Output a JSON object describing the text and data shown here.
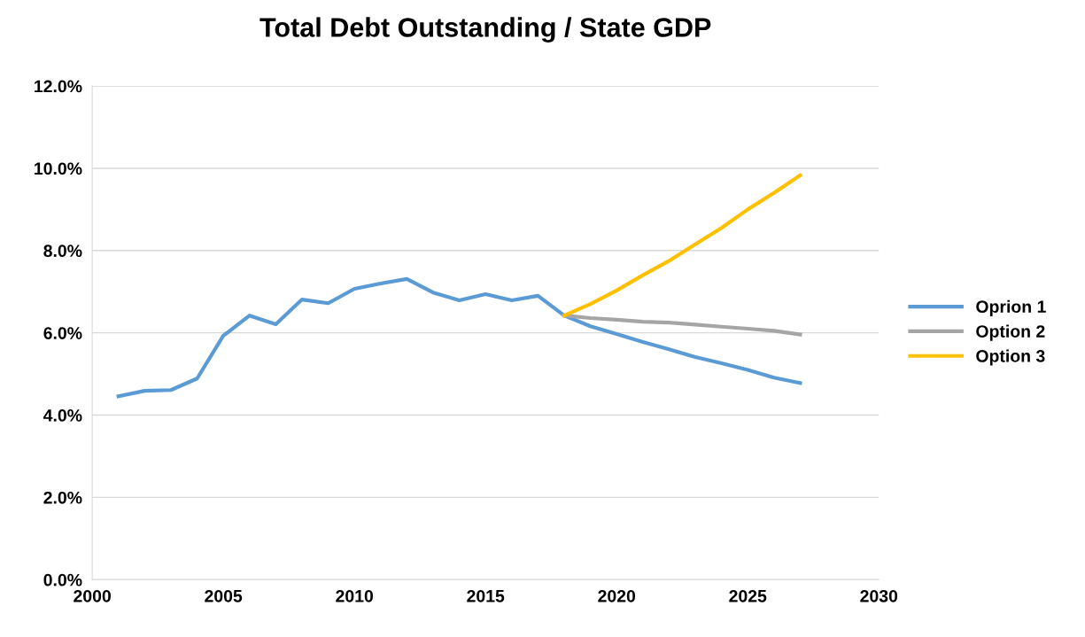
{
  "chart_data": {
    "type": "line",
    "title": "Total Debt Outstanding / State GDP",
    "xlim": [
      2000,
      2030
    ],
    "xticks": [
      2000,
      2005,
      2010,
      2015,
      2020,
      2025,
      2030
    ],
    "ylim": [
      0,
      12
    ],
    "yticks": [
      {
        "value": 0,
        "label": "0.0%"
      },
      {
        "value": 2,
        "label": "2.0%"
      },
      {
        "value": 4,
        "label": "4.0%"
      },
      {
        "value": 6,
        "label": "6.0%"
      },
      {
        "value": 8,
        "label": "8.0%"
      },
      {
        "value": 10,
        "label": "10.0%"
      },
      {
        "value": 12,
        "label": "12.0%"
      }
    ],
    "grid": "y",
    "legend": "right",
    "marker": "none",
    "line_style": "solid",
    "series": [
      {
        "name": "Oprion 1",
        "color": "#5b9bd5",
        "x": [
          2001,
          2002,
          2003,
          2004,
          2005,
          2006,
          2007,
          2008,
          2009,
          2010,
          2011,
          2012,
          2013,
          2014,
          2015,
          2016,
          2017,
          2018,
          2019,
          2020,
          2021,
          2022,
          2023,
          2024,
          2025,
          2026,
          2027
        ],
        "values": [
          4.46,
          4.59,
          4.61,
          4.89,
          5.93,
          6.42,
          6.21,
          6.81,
          6.72,
          7.07,
          7.2,
          7.31,
          6.98,
          6.79,
          6.94,
          6.79,
          6.9,
          6.42,
          6.16,
          5.97,
          5.78,
          5.6,
          5.41,
          5.26,
          5.1,
          4.91,
          4.78
        ]
      },
      {
        "name": "Option 2",
        "color": "#a5a5a5",
        "x": [
          2018,
          2019,
          2020,
          2021,
          2022,
          2023,
          2024,
          2025,
          2026,
          2027
        ],
        "values": [
          6.42,
          6.36,
          6.32,
          6.27,
          6.25,
          6.2,
          6.15,
          6.1,
          6.05,
          5.96
        ]
      },
      {
        "name": "Option 3",
        "color": "#ffc000",
        "x": [
          2018,
          2019,
          2020,
          2021,
          2022,
          2023,
          2024,
          2025,
          2026,
          2027
        ],
        "values": [
          6.42,
          6.7,
          7.03,
          7.4,
          7.75,
          8.15,
          8.55,
          9.0,
          9.4,
          9.83
        ]
      }
    ]
  }
}
